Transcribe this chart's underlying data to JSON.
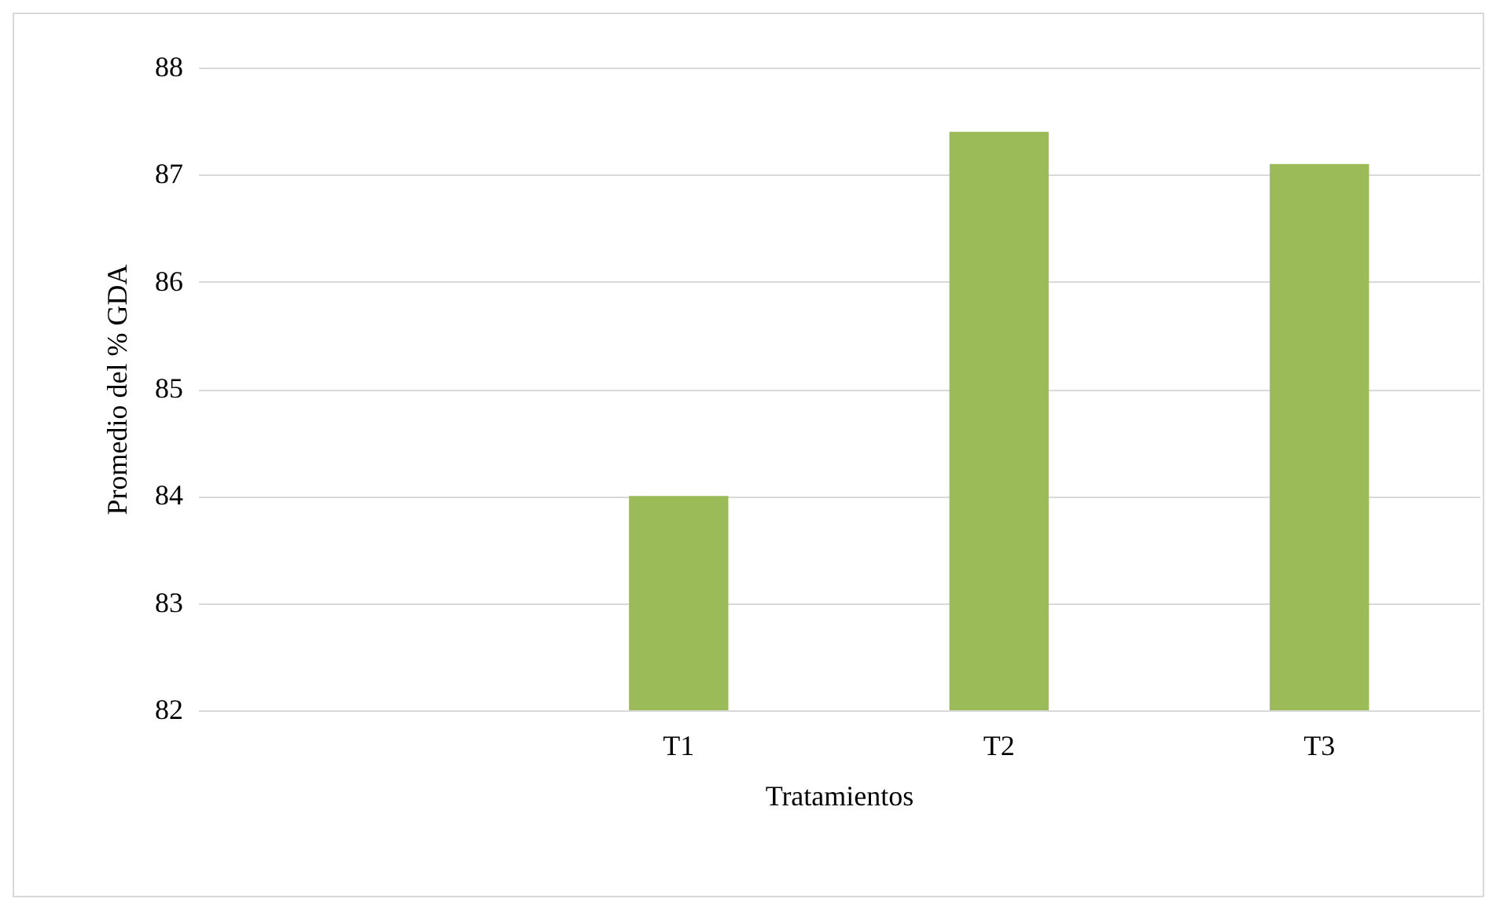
{
  "chart_data": {
    "type": "bar",
    "xlabel": "Tratamientos",
    "ylabel": "Promedio del % GDA",
    "categories": [
      null,
      "T1",
      "T2",
      "T3"
    ],
    "values": [
      null,
      84.0,
      87.4,
      87.1
    ],
    "color": "#9bbb59",
    "ylim": [
      82,
      88
    ],
    "yticks": [
      82,
      83,
      84,
      85,
      86,
      87,
      88
    ],
    "grid": "y"
  }
}
